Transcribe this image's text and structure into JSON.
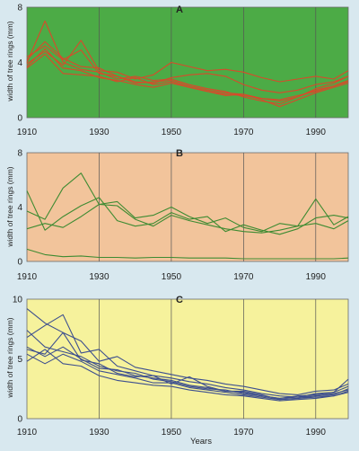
{
  "figure": {
    "xlabel": "Years"
  },
  "chart_data": [
    {
      "type": "line",
      "panel": "A",
      "background": "#4cab46",
      "line_color": "#d84a2a",
      "ylabel": "width of tree rings (mm)",
      "ylim": [
        0,
        8
      ],
      "yticks": [
        0,
        4,
        8
      ],
      "xlim": [
        1910,
        1999
      ],
      "xticks": [
        1910,
        1930,
        1950,
        1970,
        1990
      ],
      "grid": "vertical",
      "x": [
        1910,
        1915,
        1920,
        1925,
        1930,
        1935,
        1940,
        1945,
        1950,
        1955,
        1960,
        1965,
        1970,
        1975,
        1980,
        1985,
        1990,
        1995,
        1999
      ],
      "series": [
        {
          "values": [
            4.2,
            5.5,
            4.3,
            3.7,
            3.6,
            3.0,
            2.5,
            2.6,
            2.7,
            2.3,
            2.0,
            1.8,
            1.7,
            1.4,
            1.2,
            1.5,
            2.0,
            2.3,
            2.7
          ]
        },
        {
          "values": [
            3.6,
            4.6,
            3.2,
            3.1,
            3.0,
            2.6,
            2.9,
            2.4,
            2.6,
            2.2,
            1.9,
            1.6,
            1.7,
            1.3,
            0.8,
            1.3,
            1.8,
            2.2,
            2.5
          ]
        },
        {
          "values": [
            4.0,
            7.0,
            4.0,
            3.5,
            3.3,
            2.8,
            3.0,
            2.7,
            2.8,
            2.4,
            2.1,
            1.9,
            1.5,
            1.2,
            1.0,
            1.5,
            2.1,
            2.5,
            3.0
          ]
        },
        {
          "values": [
            3.9,
            4.8,
            3.8,
            5.6,
            3.4,
            3.3,
            2.8,
            3.1,
            4.0,
            3.7,
            3.4,
            3.5,
            3.3,
            2.9,
            2.6,
            2.8,
            3.0,
            2.8,
            3.4
          ]
        },
        {
          "values": [
            4.4,
            5.2,
            4.2,
            4.9,
            3.2,
            3.0,
            2.6,
            2.5,
            2.9,
            3.1,
            3.2,
            3.0,
            2.4,
            2.0,
            1.8,
            2.0,
            2.4,
            2.6,
            3.0
          ]
        },
        {
          "values": [
            3.7,
            5.0,
            3.6,
            3.4,
            2.9,
            2.7,
            2.4,
            2.2,
            2.5,
            2.2,
            1.9,
            1.7,
            1.6,
            1.4,
            1.3,
            1.6,
            1.9,
            2.3,
            2.6
          ]
        }
      ]
    },
    {
      "type": "line",
      "panel": "B",
      "background": "#f2c49b",
      "line_color": "#3e8b32",
      "ylabel": "width of tree rings (mm)",
      "ylim": [
        0,
        8
      ],
      "yticks": [
        0,
        4,
        8
      ],
      "xlim": [
        1910,
        1999
      ],
      "xticks": [
        1910,
        1930,
        1950,
        1970,
        1990
      ],
      "grid": "vertical",
      "x": [
        1910,
        1915,
        1920,
        1925,
        1930,
        1935,
        1940,
        1945,
        1950,
        1955,
        1960,
        1965,
        1970,
        1975,
        1980,
        1985,
        1990,
        1995,
        1999
      ],
      "series": [
        {
          "values": [
            3.7,
            3.1,
            5.4,
            6.5,
            4.2,
            4.4,
            3.2,
            3.4,
            4.0,
            3.3,
            2.8,
            3.2,
            2.5,
            2.2,
            2.8,
            2.6,
            4.6,
            2.7,
            3.3
          ]
        },
        {
          "values": [
            5.2,
            2.3,
            3.3,
            4.1,
            4.7,
            3.0,
            2.6,
            2.8,
            3.6,
            3.1,
            3.3,
            2.2,
            2.7,
            2.3,
            2.0,
            2.4,
            3.2,
            3.4,
            3.2
          ]
        },
        {
          "values": [
            2.4,
            2.8,
            2.5,
            3.3,
            4.2,
            4.1,
            3.1,
            2.6,
            3.4,
            3.0,
            2.7,
            2.4,
            2.2,
            2.1,
            2.3,
            2.6,
            2.8,
            2.4,
            3.0
          ]
        },
        {
          "values": [
            0.9,
            0.5,
            0.35,
            0.4,
            0.3,
            0.3,
            0.25,
            0.3,
            0.3,
            0.25,
            0.25,
            0.25,
            0.2,
            0.2,
            0.2,
            0.2,
            0.2,
            0.2,
            0.25
          ]
        }
      ]
    },
    {
      "type": "line",
      "panel": "C",
      "background": "#f6f29c",
      "line_color": "#3d4f8f",
      "ylabel": "width of tree rings (mm)",
      "ylim": [
        0,
        10
      ],
      "yticks": [
        0,
        5,
        10
      ],
      "xlim": [
        1910,
        1999
      ],
      "xticks": [
        1910,
        1930,
        1950,
        1970,
        1990
      ],
      "grid": "vertical",
      "x": [
        1910,
        1915,
        1920,
        1925,
        1930,
        1935,
        1940,
        1945,
        1950,
        1955,
        1960,
        1965,
        1970,
        1975,
        1980,
        1985,
        1990,
        1995,
        1999
      ],
      "series": [
        {
          "values": [
            9.2,
            8.0,
            7.2,
            6.5,
            4.8,
            5.2,
            4.3,
            4.0,
            3.7,
            3.4,
            3.2,
            2.9,
            2.7,
            2.4,
            2.1,
            2.0,
            2.3,
            2.4,
            2.9
          ]
        },
        {
          "values": [
            6.8,
            7.8,
            8.7,
            5.5,
            5.8,
            4.4,
            4.0,
            3.6,
            3.4,
            3.1,
            2.9,
            2.6,
            2.4,
            2.1,
            1.9,
            1.8,
            2.1,
            2.2,
            2.7
          ]
        },
        {
          "values": [
            6.0,
            5.2,
            6.0,
            5.0,
            4.2,
            4.1,
            3.6,
            3.4,
            3.2,
            2.8,
            2.6,
            2.3,
            2.2,
            1.9,
            1.7,
            1.8,
            1.9,
            2.0,
            2.5
          ]
        },
        {
          "values": [
            5.4,
            4.6,
            5.4,
            4.8,
            4.0,
            3.7,
            3.4,
            3.0,
            3.0,
            2.6,
            2.4,
            2.2,
            2.0,
            1.8,
            1.6,
            1.7,
            1.8,
            1.9,
            2.3
          ]
        },
        {
          "values": [
            7.4,
            6.0,
            5.6,
            5.2,
            4.4,
            4.0,
            3.8,
            3.3,
            3.1,
            2.7,
            2.5,
            2.4,
            2.1,
            1.9,
            1.7,
            1.9,
            2.0,
            2.2,
            3.3
          ]
        },
        {
          "values": [
            4.8,
            5.8,
            4.6,
            4.4,
            3.6,
            3.2,
            3.0,
            2.8,
            2.7,
            2.4,
            2.2,
            2.0,
            1.9,
            1.7,
            1.5,
            1.6,
            1.7,
            1.9,
            2.2
          ]
        },
        {
          "values": [
            5.8,
            5.4,
            7.2,
            4.9,
            4.6,
            3.8,
            3.5,
            3.6,
            2.9,
            3.5,
            2.7,
            2.3,
            2.3,
            2.0,
            1.6,
            1.7,
            1.9,
            2.1,
            2.4
          ]
        }
      ]
    }
  ]
}
